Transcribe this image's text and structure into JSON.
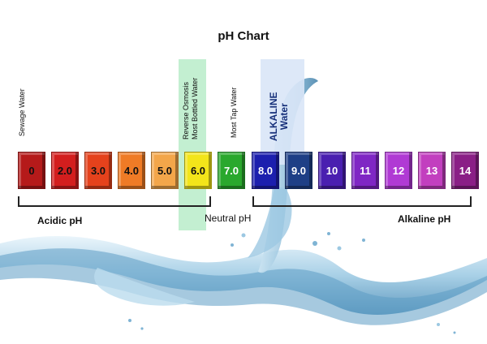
{
  "title": "pH Chart",
  "labels": {
    "sewage": "Sewage Water",
    "ro_line1": "Reverse Osmosis",
    "ro_line2": "Most Bottled Water",
    "tap": "Most Tap Water",
    "alk_line1": "ALKALINE",
    "alk_line2": "Water"
  },
  "ranges": {
    "acidic": "Acidic pH",
    "neutral": "Neutral pH",
    "alkaline": "Alkaline pH"
  },
  "scale": [
    {
      "label": "0",
      "color": "#b51a1a",
      "text": "#111111"
    },
    {
      "label": "2.0",
      "color": "#d31e1e",
      "text": "#111111"
    },
    {
      "label": "3.0",
      "color": "#e5421c",
      "text": "#111111"
    },
    {
      "label": "4.0",
      "color": "#ef7b26",
      "text": "#111111"
    },
    {
      "label": "5.0",
      "color": "#f3a64a",
      "text": "#111111"
    },
    {
      "label": "6.0",
      "color": "#f3e51a",
      "text": "#111111"
    },
    {
      "label": "7.0",
      "color": "#2aa82d",
      "text": "#ffffff"
    },
    {
      "label": "8.0",
      "color": "#1c1fae",
      "text": "#ffffff"
    },
    {
      "label": "9.0",
      "color": "#1e3f86",
      "text": "#ffffff"
    },
    {
      "label": "10",
      "color": "#4a1fb0",
      "text": "#ffffff"
    },
    {
      "label": "11",
      "color": "#7f26c4",
      "text": "#ffffff"
    },
    {
      "label": "12",
      "color": "#b03ad4",
      "text": "#ffffff"
    },
    {
      "label": "13",
      "color": "#c23fbf",
      "text": "#ffffff"
    },
    {
      "label": "14",
      "color": "#8a1f86",
      "text": "#ffffff"
    }
  ],
  "colors": {
    "ro_band": "#b8ecc9",
    "alkaline_band": "#d9e6f7"
  }
}
